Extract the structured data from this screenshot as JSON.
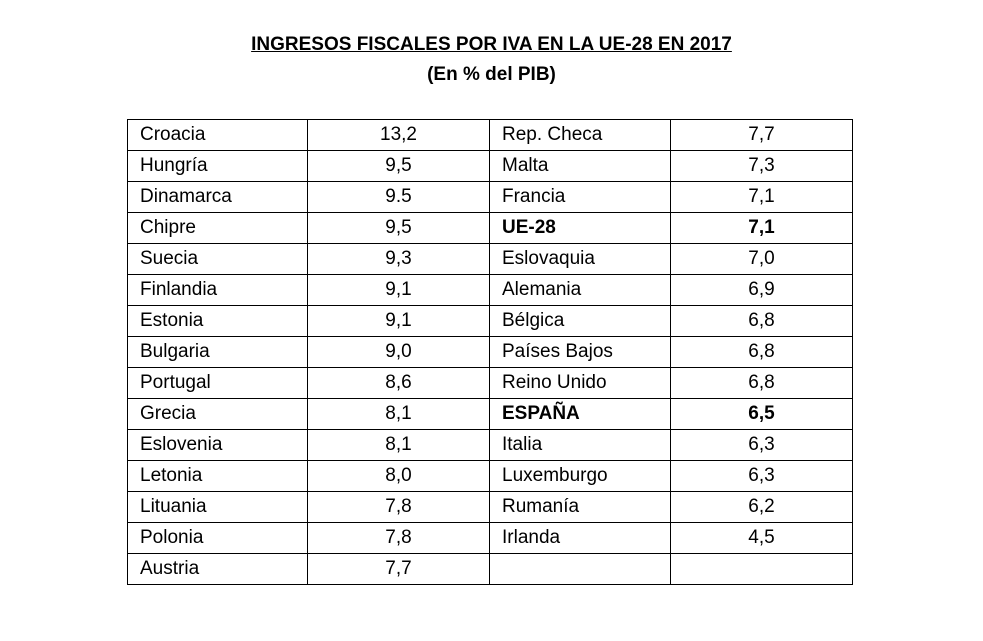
{
  "title": "INGRESOS FISCALES POR IVA EN LA UE-28 EN 2017",
  "subtitle": "(En % del PIB)",
  "rows": [
    {
      "c1": "Croacia",
      "v1": "13,2",
      "c2": "Rep. Checa",
      "v2": "7,7"
    },
    {
      "c1": "Hungría",
      "v1": "9,5",
      "c2": "Malta",
      "v2": "7,3"
    },
    {
      "c1": "Dinamarca",
      "v1": "9.5",
      "c2": "Francia",
      "v2": "7,1"
    },
    {
      "c1": "Chipre",
      "v1": "9,5",
      "c2": "UE-28",
      "v2": "7,1",
      "bold2": true
    },
    {
      "c1": "Suecia",
      "v1": "9,3",
      "c2": "Eslovaquia",
      "v2": "7,0"
    },
    {
      "c1": "Finlandia",
      "v1": "9,1",
      "c2": "Alemania",
      "v2": "6,9"
    },
    {
      "c1": "Estonia",
      "v1": "9,1",
      "c2": "Bélgica",
      "v2": "6,8"
    },
    {
      "c1": "Bulgaria",
      "v1": "9,0",
      "c2": "Países Bajos",
      "v2": "6,8"
    },
    {
      "c1": "Portugal",
      "v1": "8,6",
      "c2": "Reino Unido",
      "v2": "6,8"
    },
    {
      "c1": "Grecia",
      "v1": "8,1",
      "c2": "ESPAÑA",
      "v2": "6,5",
      "bold2": true
    },
    {
      "c1": "Eslovenia",
      "v1": "8,1",
      "c2": "Italia",
      "v2": "6,3"
    },
    {
      "c1": "Letonia",
      "v1": "8,0",
      "c2": "Luxemburgo",
      "v2": "6,3"
    },
    {
      "c1": "Lituania",
      "v1": "7,8",
      "c2": "Rumanía",
      "v2": "6,2"
    },
    {
      "c1": "Polonia",
      "v1": "7,8",
      "c2": "Irlanda",
      "v2": "4,5"
    },
    {
      "c1": "Austria",
      "v1": "7,7",
      "c2": "",
      "v2": ""
    }
  ]
}
